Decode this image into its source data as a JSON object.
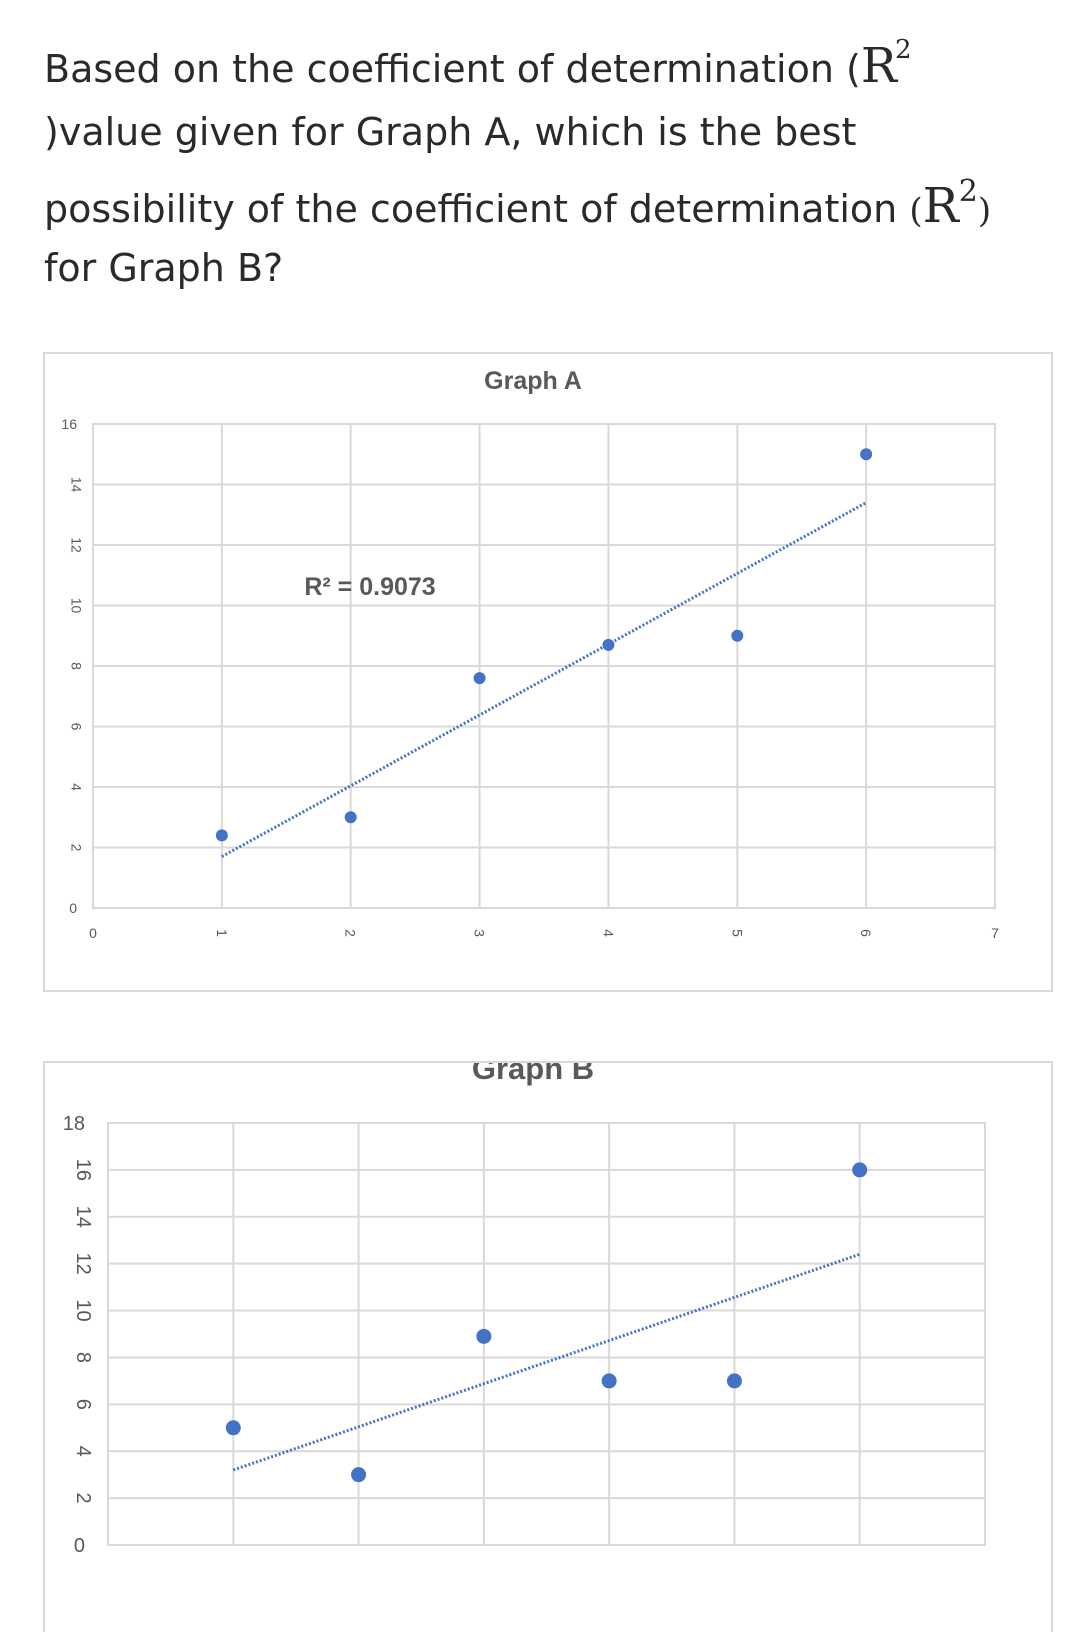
{
  "question": {
    "line1_text": "Based on the coefficient of determination (",
    "line1_math": "R",
    "line1_sup": "2",
    "line2": ")value given for Graph A, which is the best",
    "line3_text": "possibility of the coefficient of determination ",
    "line3_math_open": "(",
    "line3_math": "R",
    "line3_sup": "2",
    "line3_math_close": ")",
    "line4": "for Graph B?"
  },
  "colors": {
    "point": "#4472C4",
    "trendline": "#4472C4",
    "grid": "#d9d9d9",
    "axis_text": "#595959",
    "title": "#595959"
  },
  "chart_data": [
    {
      "type": "scatter",
      "title": "Graph A",
      "annotation": "R² = 0.9073",
      "trendline": "linear",
      "x": [
        1,
        2,
        3,
        4,
        5,
        6
      ],
      "y": [
        2.4,
        3.0,
        7.6,
        8.7,
        9.0,
        15.0
      ],
      "trendline_endpoints": {
        "x": [
          1,
          6
        ],
        "y": [
          1.7,
          13.4
        ]
      },
      "xlim": [
        0,
        7
      ],
      "ylim": [
        0,
        16
      ],
      "xticks": [
        "0",
        "1",
        "2",
        "3",
        "4",
        "5",
        "6",
        "7"
      ],
      "yticks": [
        "0",
        "2",
        "4",
        "6",
        "8",
        "10",
        "12",
        "14",
        "16"
      ],
      "grid": true
    },
    {
      "type": "scatter",
      "title": "Graph B",
      "trendline": "linear",
      "x": [
        1,
        2,
        3,
        4,
        5,
        6
      ],
      "y": [
        5.0,
        3.0,
        8.9,
        7.0,
        7.0,
        16.0
      ],
      "trendline_endpoints": {
        "x": [
          1,
          6
        ],
        "y": [
          3.2,
          12.4
        ]
      },
      "xlim": [
        0,
        7
      ],
      "ylim": [
        0,
        18
      ],
      "yticks": [
        "0",
        "2",
        "4",
        "6",
        "8",
        "10",
        "12",
        "14",
        "16",
        "18"
      ],
      "grid": true
    }
  ]
}
